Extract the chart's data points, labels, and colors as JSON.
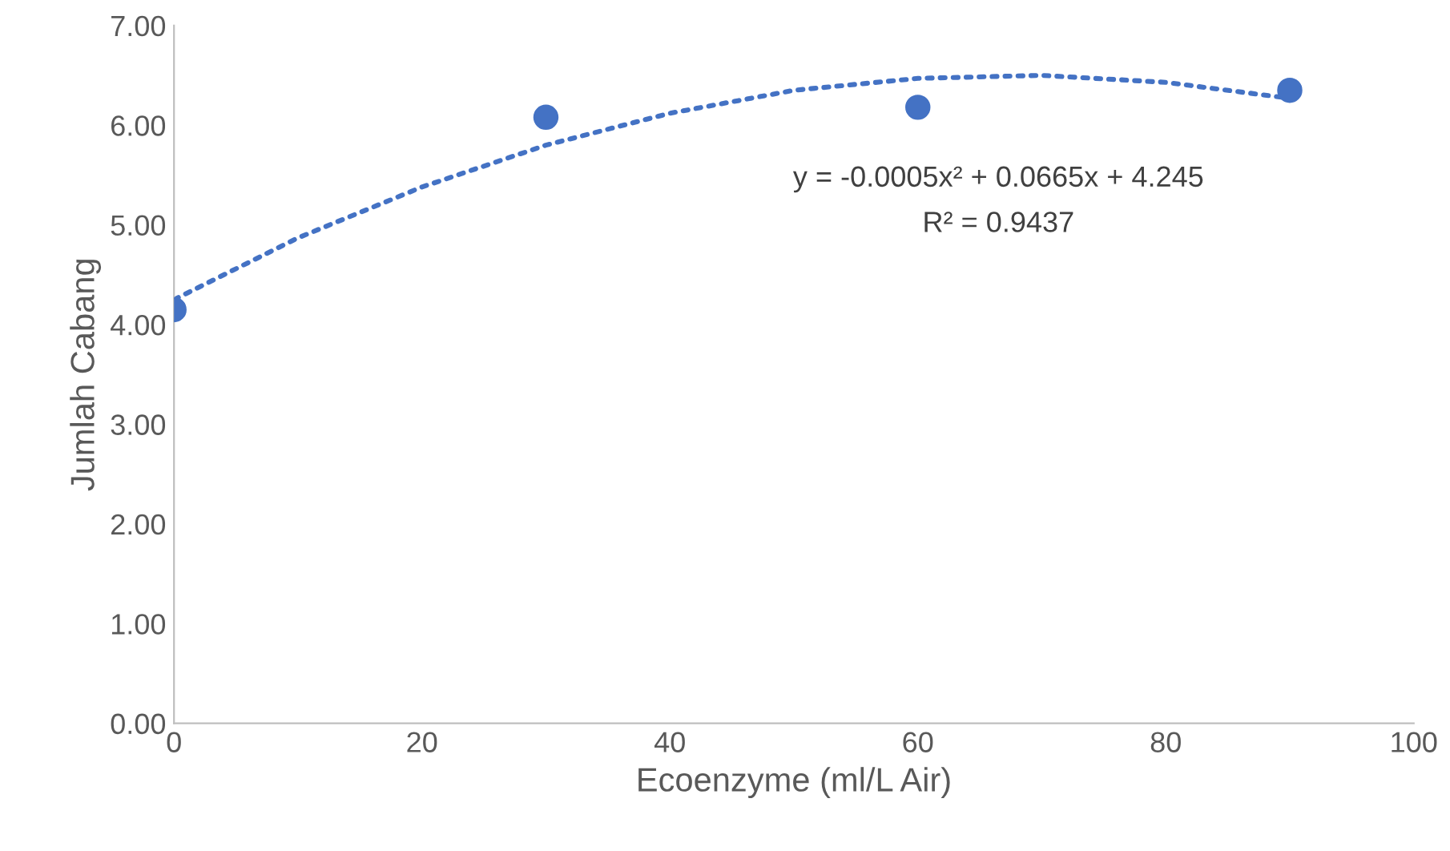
{
  "chart_data": {
    "type": "scatter",
    "xlabel": "Ecoenzyme (ml/L Air)",
    "ylabel": "Jumlah Cabang",
    "xlim": [
      0,
      100
    ],
    "xticks": [
      0,
      20,
      40,
      60,
      80,
      100
    ],
    "ylim": [
      0,
      7
    ],
    "yticks": [
      {
        "value": 0,
        "label": "0.00"
      },
      {
        "value": 1,
        "label": "1.00"
      },
      {
        "value": 2,
        "label": "2.00"
      },
      {
        "value": 3,
        "label": "3.00"
      },
      {
        "value": 4,
        "label": "4.00"
      },
      {
        "value": 5,
        "label": "5.00"
      },
      {
        "value": 6,
        "label": "6.00"
      },
      {
        "value": 7,
        "label": "7.00"
      }
    ],
    "grid": false,
    "legend": false,
    "series": [
      {
        "color": "#4472c4",
        "marker": "circle",
        "x": [
          0,
          30,
          60,
          90
        ],
        "values": [
          4.15,
          6.08,
          6.18,
          6.35
        ]
      },
      {
        "type": "line",
        "color": "#4472c4",
        "line_style": "dotted",
        "marker": "none",
        "x": [
          0,
          10,
          20,
          30,
          40,
          50,
          60,
          70,
          80,
          90
        ],
        "values": [
          4.25,
          4.87,
          5.38,
          5.8,
          6.12,
          6.35,
          6.47,
          6.5,
          6.43,
          6.27
        ]
      }
    ],
    "annotations": [
      "y = -0.0005x² + 0.0665x + 4.245",
      "R² = 0.9437"
    ]
  }
}
